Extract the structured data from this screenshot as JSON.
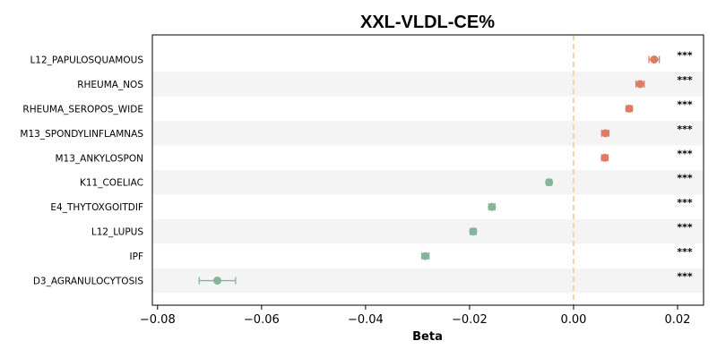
{
  "chart_data": {
    "type": "scatter",
    "title": "XXL-VLDL-CE%",
    "xlabel": "Beta",
    "ylabel": "",
    "xlim": [
      -0.081,
      0.025
    ],
    "xticks": [
      -0.08,
      -0.06,
      -0.04,
      -0.02,
      0.0,
      0.02
    ],
    "xtick_labels": [
      "−0.08",
      "−0.06",
      "−0.04",
      "−0.02",
      "0.00",
      "0.02"
    ],
    "reference_line": 0,
    "positive_color": "#e07b62",
    "negative_color": "#84b59a",
    "reference_color": "#f6c98e",
    "stripe_color": "#f4f4f4",
    "points": [
      {
        "label": "L12_PAPULOSQUAMOUS",
        "beta": 0.0155,
        "ci_low": 0.0145,
        "ci_high": 0.0165,
        "sig": "***"
      },
      {
        "label": "RHEUMA_NOS",
        "beta": 0.0128,
        "ci_low": 0.012,
        "ci_high": 0.0136,
        "sig": "***"
      },
      {
        "label": "RHEUMA_SEROPOS_WIDE",
        "beta": 0.0107,
        "ci_low": 0.0101,
        "ci_high": 0.0113,
        "sig": "***"
      },
      {
        "label": "M13_SPONDYLINFLAMNAS",
        "beta": 0.0061,
        "ci_low": 0.0054,
        "ci_high": 0.0068,
        "sig": "***"
      },
      {
        "label": "M13_ANKYLOSPON",
        "beta": 0.006,
        "ci_low": 0.0054,
        "ci_high": 0.0066,
        "sig": "***"
      },
      {
        "label": "K11_COELIAC",
        "beta": -0.0047,
        "ci_low": -0.0052,
        "ci_high": -0.0042,
        "sig": "***"
      },
      {
        "label": "E4_THYTOXGOITDIF",
        "beta": -0.0157,
        "ci_low": -0.0163,
        "ci_high": -0.0151,
        "sig": "***"
      },
      {
        "label": "L12_LUPUS",
        "beta": -0.0193,
        "ci_low": -0.0199,
        "ci_high": -0.0187,
        "sig": "***"
      },
      {
        "label": "IPF",
        "beta": -0.0285,
        "ci_low": -0.0292,
        "ci_high": -0.0278,
        "sig": "***"
      },
      {
        "label": "D3_AGRANULOCYTOSIS",
        "beta": -0.0685,
        "ci_low": -0.072,
        "ci_high": -0.065,
        "sig": "***"
      }
    ]
  }
}
